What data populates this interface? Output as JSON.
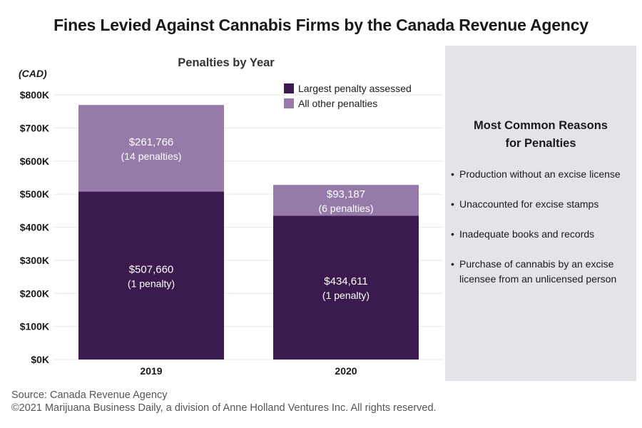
{
  "title": "Fines Levied Against Cannabis Firms by the Canada Revenue Agency",
  "chart_data": {
    "type": "bar",
    "stacked": true,
    "title": "Penalties by Year",
    "ylabel": "(CAD)",
    "xlabel": "",
    "categories": [
      "2019",
      "2020"
    ],
    "ylim": [
      0,
      800000
    ],
    "y_ticks": [
      0,
      100000,
      200000,
      300000,
      400000,
      500000,
      600000,
      700000,
      800000
    ],
    "y_tick_labels": [
      "$0K",
      "$100K",
      "$200K",
      "$300K",
      "$400K",
      "$500K",
      "$600K",
      "$700K",
      "$800K"
    ],
    "grid": true,
    "legend_position": "top-right",
    "series": [
      {
        "name": "Largest penalty assessed",
        "color": "#3b1a4d",
        "values": [
          507660,
          434611
        ],
        "labels": [
          "$507,660",
          "$434,611"
        ],
        "sublabels": [
          "(1 penalty)",
          "(1 penalty)"
        ]
      },
      {
        "name": "All other penalties",
        "color": "#967aa9",
        "values": [
          261766,
          93187
        ],
        "labels": [
          "$261,766",
          "$93,187"
        ],
        "sublabels": [
          "(14 penalties)",
          "(6 penalties)"
        ]
      }
    ]
  },
  "reasons_panel": {
    "title_line1": "Most Common Reasons",
    "title_line2": "for Penalties",
    "bullet": "•",
    "items": [
      "Production without an excise license",
      "Unaccounted for excise stamps",
      "Inadequate books and records",
      "Purchase of cannabis by an excise licensee from an unlicensed person"
    ]
  },
  "footer": {
    "source": "Source: Canada Revenue Agency",
    "copyright": "©2021 Marijuana Business Daily, a division of Anne Holland Ventures Inc. All rights reserved."
  }
}
